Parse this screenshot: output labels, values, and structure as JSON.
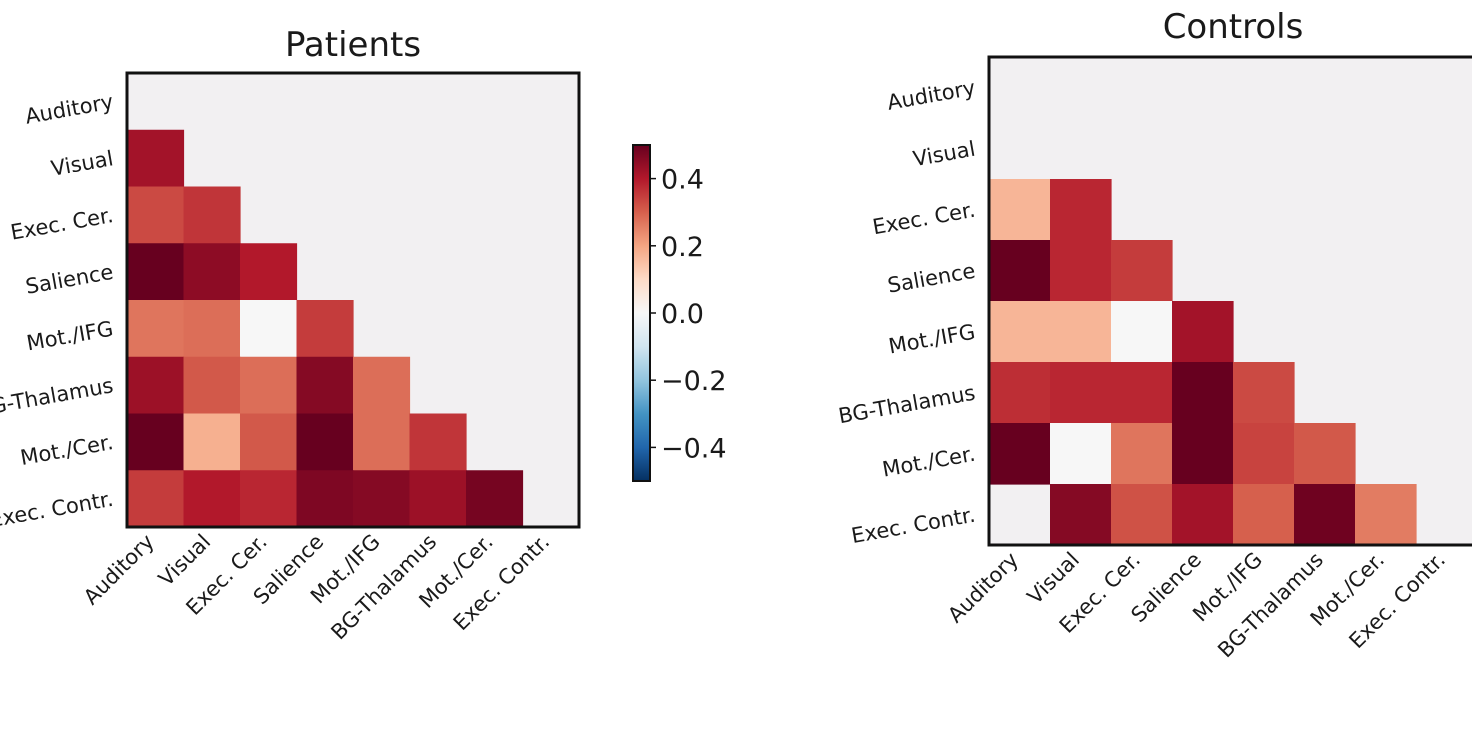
{
  "chart_data": [
    {
      "type": "heatmap",
      "title": "Patients",
      "labels": [
        "Auditory",
        "Visual",
        "Exec. Cer.",
        "Salience",
        "Mot./IFG",
        "BG-Thalamus",
        "Mot./Cer.",
        "Exec. Contr."
      ],
      "matrix": [
        [
          null,
          null,
          null,
          null,
          null,
          null,
          null,
          null
        ],
        [
          0.42,
          null,
          null,
          null,
          null,
          null,
          null,
          null
        ],
        [
          0.33,
          0.36,
          null,
          null,
          null,
          null,
          null,
          null
        ],
        [
          0.5,
          0.45,
          0.4,
          null,
          null,
          null,
          null,
          null
        ],
        [
          0.27,
          0.28,
          0.0,
          0.35,
          null,
          null,
          null,
          null
        ],
        [
          0.43,
          0.31,
          0.28,
          0.46,
          0.28,
          null,
          null,
          null
        ],
        [
          0.5,
          0.18,
          0.31,
          0.5,
          0.28,
          0.36,
          null,
          null
        ],
        [
          0.35,
          0.4,
          0.38,
          0.47,
          0.46,
          0.43,
          0.48,
          null
        ]
      ],
      "grid": false
    },
    {
      "type": "heatmap",
      "title": "Controls",
      "labels": [
        "Auditory",
        "Visual",
        "Exec. Cer.",
        "Salience",
        "Mot./IFG",
        "BG-Thalamus",
        "Mot./Cer.",
        "Exec. Contr."
      ],
      "matrix": [
        [
          null,
          null,
          null,
          null,
          null,
          null,
          null,
          null
        ],
        [
          null,
          null,
          null,
          null,
          null,
          null,
          null,
          null
        ],
        [
          0.17,
          0.38,
          null,
          null,
          null,
          null,
          null,
          null
        ],
        [
          0.5,
          0.38,
          0.35,
          null,
          null,
          null,
          null,
          null
        ],
        [
          0.17,
          0.17,
          0.0,
          0.42,
          null,
          null,
          null,
          null
        ],
        [
          0.37,
          0.38,
          0.38,
          0.5,
          0.33,
          null,
          null,
          null
        ],
        [
          0.5,
          0.0,
          0.27,
          0.5,
          0.34,
          0.31,
          null,
          null
        ],
        [
          null,
          0.46,
          0.32,
          0.42,
          0.3,
          0.49,
          0.26,
          null
        ]
      ],
      "grid": false
    }
  ],
  "colorbar": {
    "colormap": "RdBu_r",
    "min": -0.5,
    "max": 0.5,
    "ticks": [
      {
        "value": 0.4,
        "label": "0.4"
      },
      {
        "value": 0.2,
        "label": "0.2"
      },
      {
        "value": 0.0,
        "label": "0.0"
      },
      {
        "value": -0.2,
        "label": "−0.2"
      },
      {
        "value": -0.4,
        "label": "−0.4"
      }
    ]
  },
  "colors": {
    "masked_cell": "#f2f0f2",
    "frame": "#111111"
  }
}
